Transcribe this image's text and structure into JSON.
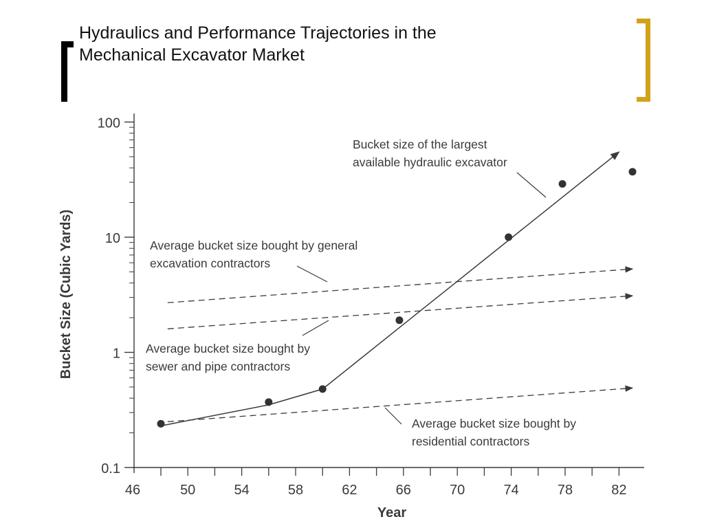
{
  "slide": {
    "title_line1": "Hydraulics and Performance Trajectories in the",
    "title_line2": "Mechanical Excavator Market"
  },
  "colors": {
    "left_bracket": "#000000",
    "right_bracket": "#d2a21a",
    "ink": "#3a3a3a"
  },
  "chart_data": {
    "type": "scatter",
    "xlabel": "Year",
    "ylabel": "Bucket Size (Cubic Yards)",
    "x_ticks": [
      "46",
      "50",
      "54",
      "58",
      "62",
      "66",
      "70",
      "74",
      "78",
      "82"
    ],
    "y_ticks": [
      "0.1",
      "1",
      "10",
      "100"
    ],
    "xlim": [
      46,
      83
    ],
    "ylim": [
      0.1,
      100
    ],
    "y_scale": "log",
    "series": [
      {
        "style": "points-and-line",
        "points": [
          {
            "x": 48,
            "y": 0.24
          },
          {
            "x": 56,
            "y": 0.37
          },
          {
            "x": 60,
            "y": 0.48
          },
          {
            "x": 65.7,
            "y": 1.9
          },
          {
            "x": 73.8,
            "y": 10
          },
          {
            "x": 77.8,
            "y": 29
          },
          {
            "x": 83,
            "y": 37
          }
        ],
        "line": [
          {
            "x": 48,
            "y": 0.23
          },
          {
            "x": 56,
            "y": 0.35
          },
          {
            "x": 60,
            "y": 0.48
          },
          {
            "x": 82,
            "y": 55
          }
        ]
      },
      {
        "style": "dashed-arrow",
        "line": [
          {
            "x": 48.5,
            "y": 2.7
          },
          {
            "x": 83,
            "y": 5.3
          }
        ]
      },
      {
        "style": "dashed-arrow",
        "line": [
          {
            "x": 48.5,
            "y": 1.6
          },
          {
            "x": 83,
            "y": 3.1
          }
        ]
      },
      {
        "style": "dashed-arrow",
        "line": [
          {
            "x": 48.5,
            "y": 0.25
          },
          {
            "x": 83,
            "y": 0.49
          }
        ]
      }
    ],
    "annotations": [
      {
        "lines": [
          "Bucket size of the largest",
          "available hydraulic excavator"
        ]
      },
      {
        "lines": [
          "Average bucket size bought by general",
          "excavation contractors"
        ]
      },
      {
        "lines": [
          "Average bucket size bought by",
          "sewer and pipe contractors"
        ]
      },
      {
        "lines": [
          "Average bucket size bought by",
          "residential contractors"
        ]
      }
    ]
  }
}
